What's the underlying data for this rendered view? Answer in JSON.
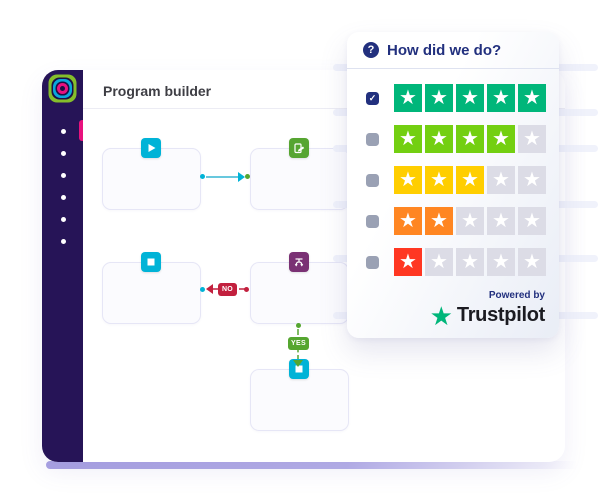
{
  "app": {
    "title": "Program builder"
  },
  "sidebar": {
    "nav_dot_count": 6,
    "accent_color": "#E8127E",
    "background_color": "#261457"
  },
  "flowchart": {
    "nodes": [
      {
        "id": "start",
        "icon": "play-icon",
        "color": "#00B3D7"
      },
      {
        "id": "send-email",
        "icon": "email-edit-icon",
        "color": "#56A531"
      },
      {
        "id": "wait",
        "icon": "wait-icon",
        "color": "#00B3D7"
      },
      {
        "id": "decision-split",
        "icon": "split-icon",
        "color": "#7A3174"
      },
      {
        "id": "wait-2",
        "icon": "wait-icon",
        "color": "#00B3D7"
      }
    ],
    "no_label": "NO",
    "yes_label": "YES",
    "connector_colors": {
      "flow": "#00B3D7",
      "no": "#C2203E",
      "yes": "#55A630"
    }
  },
  "survey": {
    "title": "How did we do?",
    "help_glyph": "?",
    "check_glyph": "✓",
    "star_glyph": "★",
    "checkbox_checked_color": "#22307E",
    "checkbox_unchecked_color": "#9AA1B4",
    "empty_star_color": "#DCDCE6",
    "rows": [
      {
        "stars": 5,
        "color": "#00B67A",
        "checked": true
      },
      {
        "stars": 4,
        "color": "#73CF11",
        "checked": false
      },
      {
        "stars": 3,
        "color": "#FFCE00",
        "checked": false
      },
      {
        "stars": 2,
        "color": "#FF8622",
        "checked": false
      },
      {
        "stars": 1,
        "color": "#FF3722",
        "checked": false
      }
    ],
    "powered_by": "Powered by",
    "brand": "Trustpilot",
    "brand_star_color": "#00B67A"
  }
}
